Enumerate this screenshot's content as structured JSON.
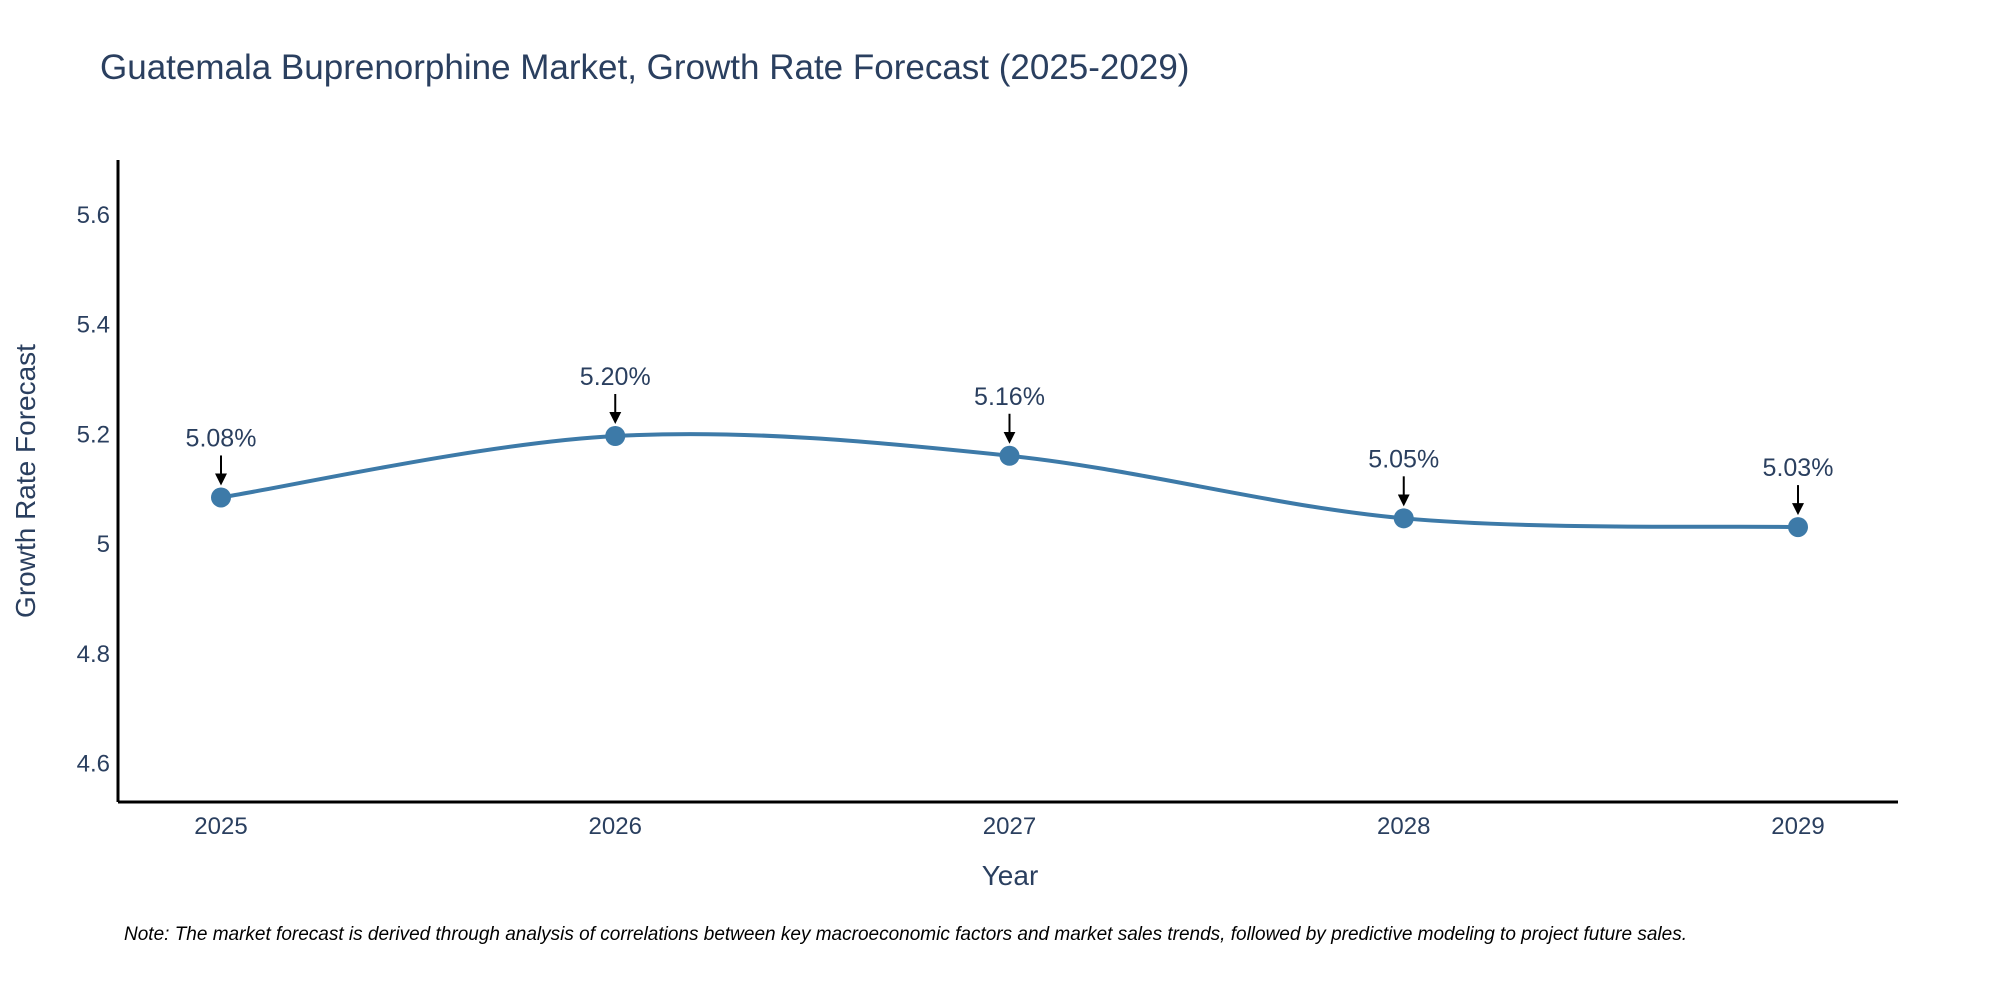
{
  "chart_data": {
    "type": "line",
    "title": "Guatemala Buprenorphine Market, Growth Rate Forecast (2025-2029)",
    "xlabel": "Year",
    "ylabel": "Growth Rate Forecast",
    "categories": [
      "2025",
      "2026",
      "2027",
      "2028",
      "2029"
    ],
    "series": [
      {
        "name": "Growth Rate Forecast",
        "values": [
          5.085,
          5.197,
          5.161,
          5.047,
          5.031
        ],
        "labels": [
          "5.08%",
          "5.20%",
          "5.16%",
          "5.05%",
          "5.03%"
        ]
      }
    ],
    "ylim": [
      4.53,
      5.7
    ],
    "yticks": [
      4.6,
      4.8,
      5,
      5.2,
      5.4,
      5.6
    ],
    "ytick_labels": [
      "4.6",
      "4.8",
      "5",
      "5.2",
      "5.4",
      "5.6"
    ],
    "grid": false,
    "line_shape": "spline",
    "line_color": "#3d7aa8",
    "marker_color": "#3d7aa8",
    "annotation_arrow_color": "#000000"
  },
  "note": "Note: The market forecast is derived through analysis of correlations between key macroeconomic factors and market sales trends, followed by predictive modeling to project future sales."
}
